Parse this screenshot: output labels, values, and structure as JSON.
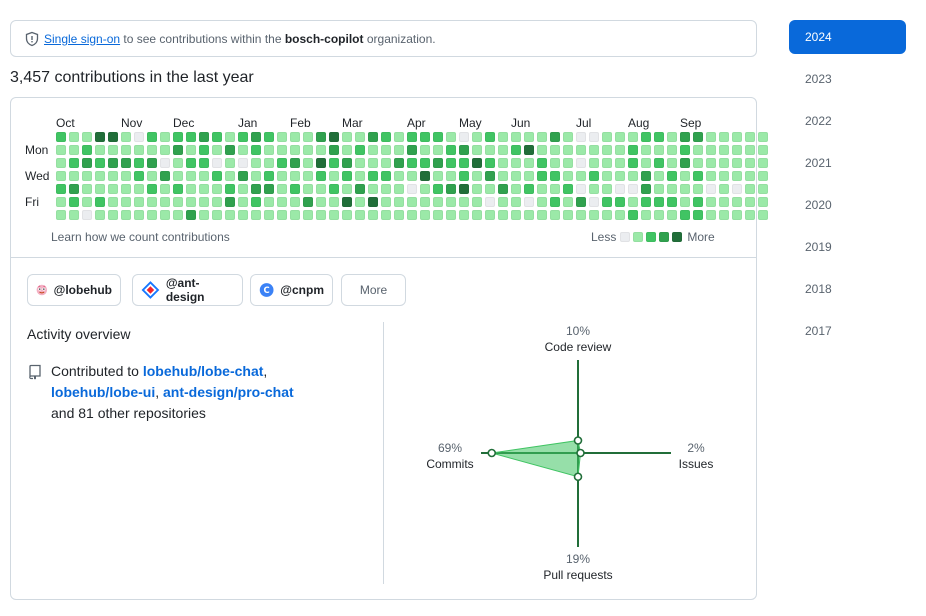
{
  "sso": {
    "link_text": "Single sign-on",
    "text_before_org": "to see contributions within the",
    "org": "bosch-copilot",
    "text_after_org": "organization."
  },
  "contributions_title": "3,457 contributions in the last year",
  "graph": {
    "months": [
      "Oct",
      "Nov",
      "Dec",
      "Jan",
      "Feb",
      "Mar",
      "Apr",
      "May",
      "Jun",
      "Jul",
      "Aug",
      "Sep"
    ],
    "day_labels": [
      "Mon",
      "Wed",
      "Fri"
    ],
    "learn_link": "Learn how we count contributions",
    "legend_less": "Less",
    "legend_more": "More",
    "level_colors": [
      "#ebedf0",
      "#9be9a8",
      "#40c463",
      "#30a14e",
      "#216e39"
    ],
    "weeks": [
      [
        2,
        1,
        1,
        1,
        2,
        1,
        1
      ],
      [
        1,
        1,
        2,
        1,
        3,
        2,
        1
      ],
      [
        1,
        2,
        3,
        1,
        1,
        1,
        0
      ],
      [
        4,
        1,
        2,
        1,
        1,
        2,
        1
      ],
      [
        4,
        1,
        3,
        1,
        1,
        1,
        1
      ],
      [
        1,
        1,
        3,
        1,
        1,
        1,
        1
      ],
      [
        0,
        1,
        2,
        2,
        1,
        1,
        1
      ],
      [
        2,
        1,
        3,
        1,
        2,
        1,
        1
      ],
      [
        1,
        1,
        0,
        3,
        1,
        1,
        1
      ],
      [
        2,
        3,
        1,
        1,
        2,
        1,
        1
      ],
      [
        2,
        1,
        2,
        1,
        1,
        1,
        3
      ],
      [
        3,
        2,
        2,
        1,
        1,
        1,
        1
      ],
      [
        2,
        1,
        0,
        2,
        1,
        1,
        1
      ],
      [
        1,
        3,
        1,
        1,
        2,
        3,
        1
      ],
      [
        2,
        1,
        0,
        3,
        1,
        1,
        1
      ],
      [
        3,
        2,
        1,
        1,
        3,
        2,
        1
      ],
      [
        2,
        1,
        1,
        2,
        3,
        1,
        1
      ],
      [
        1,
        1,
        2,
        1,
        1,
        1,
        1
      ],
      [
        1,
        1,
        3,
        1,
        2,
        1,
        1
      ],
      [
        1,
        1,
        1,
        1,
        1,
        3,
        1
      ],
      [
        3,
        1,
        4,
        2,
        1,
        1,
        1
      ],
      [
        4,
        3,
        2,
        1,
        2,
        1,
        1
      ],
      [
        1,
        1,
        3,
        2,
        1,
        4,
        1
      ],
      [
        1,
        2,
        1,
        1,
        3,
        1,
        1
      ],
      [
        3,
        1,
        1,
        2,
        1,
        4,
        1
      ],
      [
        2,
        1,
        1,
        2,
        1,
        1,
        1
      ],
      [
        1,
        1,
        3,
        1,
        1,
        1,
        1
      ],
      [
        2,
        3,
        2,
        1,
        0,
        1,
        1
      ],
      [
        2,
        1,
        2,
        4,
        1,
        1,
        1
      ],
      [
        2,
        1,
        3,
        1,
        2,
        1,
        1
      ],
      [
        1,
        2,
        2,
        1,
        3,
        1,
        1
      ],
      [
        0,
        3,
        2,
        2,
        4,
        1,
        1
      ],
      [
        1,
        1,
        4,
        1,
        1,
        1,
        1
      ],
      [
        2,
        1,
        2,
        3,
        1,
        0,
        1
      ],
      [
        1,
        1,
        1,
        1,
        3,
        1,
        1
      ],
      [
        1,
        2,
        1,
        1,
        1,
        1,
        1
      ],
      [
        1,
        4,
        1,
        1,
        2,
        0,
        1
      ],
      [
        1,
        1,
        2,
        2,
        1,
        1,
        1
      ],
      [
        3,
        1,
        1,
        2,
        1,
        2,
        1
      ],
      [
        1,
        1,
        1,
        1,
        2,
        1,
        1
      ],
      [
        0,
        1,
        0,
        1,
        0,
        3,
        1
      ],
      [
        0,
        1,
        1,
        2,
        1,
        0,
        1
      ],
      [
        1,
        1,
        1,
        1,
        1,
        2,
        1
      ],
      [
        1,
        1,
        1,
        1,
        0,
        2,
        1
      ],
      [
        1,
        2,
        2,
        1,
        0,
        1,
        2
      ],
      [
        2,
        1,
        1,
        3,
        3,
        2,
        1
      ],
      [
        2,
        1,
        2,
        1,
        1,
        2,
        1
      ],
      [
        1,
        1,
        1,
        2,
        1,
        2,
        1
      ],
      [
        3,
        2,
        3,
        1,
        1,
        1,
        2
      ],
      [
        3,
        1,
        1,
        2,
        1,
        2,
        2
      ],
      [
        1,
        1,
        1,
        1,
        0,
        1,
        1
      ],
      [
        1,
        1,
        1,
        1,
        1,
        1,
        1
      ],
      [
        1,
        1,
        1,
        1,
        0,
        1,
        1
      ],
      [
        1,
        1,
        1,
        1,
        1,
        1,
        1
      ],
      [
        1,
        1,
        1,
        1,
        1,
        1,
        1
      ]
    ]
  },
  "orgs": [
    {
      "label": "@lobehub",
      "icon": "lobehub-avatar-icon"
    },
    {
      "label": "@ant-design",
      "icon": "ant-design-logo-icon"
    },
    {
      "label": "@cnpm",
      "icon": "cnpm-logo-icon"
    }
  ],
  "more_button": "More",
  "activity": {
    "title": "Activity overview",
    "prefix": "Contributed to",
    "repos": [
      "lobehub/lobe-chat",
      "lobehub/lobe-ui",
      "ant-design/pro-chat"
    ],
    "suffix": "and 81 other repositories"
  },
  "radar": {
    "code_review": {
      "percent": "10%",
      "label": "Code review",
      "value": 10
    },
    "issues": {
      "percent": "2%",
      "label": "Issues",
      "value": 2
    },
    "pull_requests": {
      "percent": "19%",
      "label": "Pull requests",
      "value": 19
    },
    "commits": {
      "percent": "69%",
      "label": "Commits",
      "value": 69
    }
  },
  "years": [
    "2024",
    "2023",
    "2022",
    "2021",
    "2020",
    "2019",
    "2018",
    "2017"
  ],
  "selected_year": "2024"
}
